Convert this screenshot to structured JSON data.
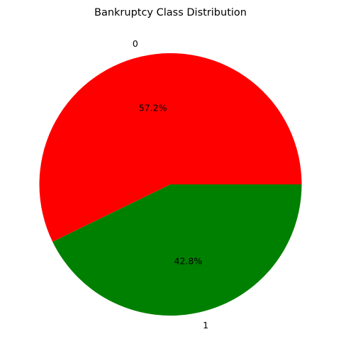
{
  "chart_data": {
    "type": "pie",
    "title": "Bankruptcy Class Distribution",
    "categories": [
      "0",
      "1"
    ],
    "values": [
      57.2,
      42.8
    ],
    "percent_labels": [
      "57.2%",
      "42.8%"
    ],
    "colors": [
      "#ff0000",
      "#008000"
    ],
    "start_angle_deg": 0,
    "direction": "counterclockwise",
    "legend": "none"
  }
}
